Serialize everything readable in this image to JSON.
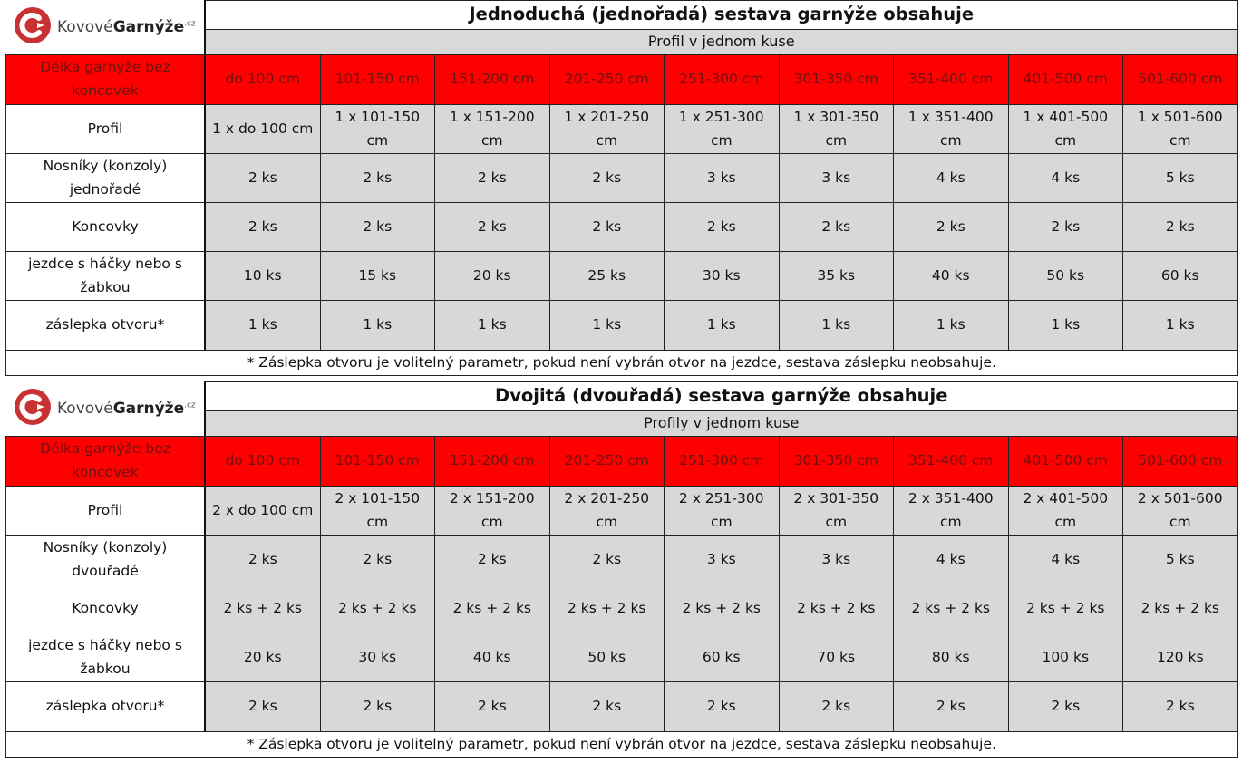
{
  "logo": {
    "prefix": "Kovové",
    "brand": "Garnýže",
    "tld": ".cz",
    "colors": {
      "red": "#c83232",
      "text": "#444444"
    }
  },
  "columns": [
    "do 100 cm",
    "101-150 cm",
    "151-200 cm",
    "201-250 cm",
    "251-300 cm",
    "301-350 cm",
    "351-400 cm",
    "401-500 cm",
    "501-600 cm"
  ],
  "header_label": "Délka garnýže bez koncovek",
  "colors": {
    "header_red": "#ff0000",
    "data_gray": "#d8d8d8"
  },
  "single": {
    "title": "Jednoduchá (jednořadá) sestava garnýže obsahuje",
    "subtitle": "Profil v jednom kuse",
    "rows": [
      {
        "label": "Profil",
        "values": [
          "1 x do 100 cm",
          "1 x 101-150 cm",
          "1 x 151-200 cm",
          "1 x 201-250 cm",
          "1 x 251-300 cm",
          "1 x 301-350 cm",
          "1 x 351-400 cm",
          "1 x 401-500 cm",
          "1 x 501-600 cm"
        ]
      },
      {
        "label": "Nosníky (konzoly) jednořadé",
        "values": [
          "2 ks",
          "2 ks",
          "2 ks",
          "2 ks",
          "3 ks",
          "3 ks",
          "4 ks",
          "4 ks",
          "5 ks"
        ]
      },
      {
        "label": "Koncovky",
        "values": [
          "2 ks",
          "2 ks",
          "2 ks",
          "2 ks",
          "2 ks",
          "2 ks",
          "2 ks",
          "2 ks",
          "2 ks"
        ]
      },
      {
        "label": "jezdce s háčky nebo s žabkou",
        "values": [
          "10 ks",
          "15 ks",
          "20 ks",
          "25 ks",
          "30 ks",
          "35 ks",
          "40 ks",
          "50 ks",
          "60 ks"
        ]
      },
      {
        "label": "záslepka otvoru*",
        "values": [
          "1 ks",
          "1 ks",
          "1 ks",
          "1 ks",
          "1 ks",
          "1 ks",
          "1 ks",
          "1 ks",
          "1 ks"
        ]
      }
    ],
    "note": "* Záslepka otvoru je volitelný parametr, pokud není vybrán otvor na jezdce, sestava záslepku neobsahuje."
  },
  "double": {
    "title": "Dvojitá (dvouřadá) sestava garnýže obsahuje",
    "subtitle": "Profily v jednom kuse",
    "rows": [
      {
        "label": "Profil",
        "values": [
          "2 x do 100 cm",
          "2 x 101-150 cm",
          "2 x 151-200 cm",
          "2 x 201-250 cm",
          "2 x 251-300 cm",
          "2 x 301-350 cm",
          "2 x 351-400 cm",
          "2 x 401-500 cm",
          "2 x 501-600 cm"
        ]
      },
      {
        "label": "Nosníky (konzoly) dvouřadé",
        "values": [
          "2 ks",
          "2 ks",
          "2 ks",
          "2 ks",
          "3 ks",
          "3 ks",
          "4 ks",
          "4 ks",
          "5 ks"
        ]
      },
      {
        "label": "Koncovky",
        "values": [
          "2 ks + 2 ks",
          "2 ks + 2 ks",
          "2 ks + 2 ks",
          "2 ks + 2 ks",
          "2 ks + 2 ks",
          "2 ks + 2 ks",
          "2 ks + 2 ks",
          "2 ks + 2 ks",
          "2 ks + 2 ks"
        ]
      },
      {
        "label": "jezdce s háčky nebo s žabkou",
        "values": [
          "20 ks",
          "30 ks",
          "40 ks",
          "50 ks",
          "60 ks",
          "70 ks",
          "80 ks",
          "100 ks",
          "120 ks"
        ]
      },
      {
        "label": "záslepka otvoru*",
        "values": [
          "2 ks",
          "2 ks",
          "2 ks",
          "2 ks",
          "2 ks",
          "2 ks",
          "2 ks",
          "2 ks",
          "2 ks"
        ]
      }
    ],
    "note": "* Záslepka otvoru je volitelný parametr, pokud není vybrán otvor na jezdce, sestava záslepku neobsahuje."
  }
}
